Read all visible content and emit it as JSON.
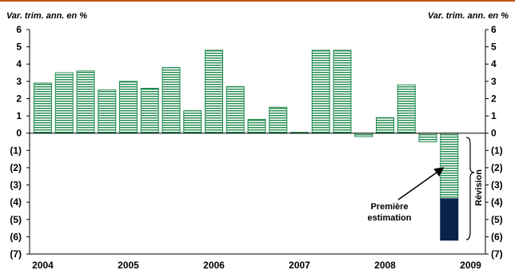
{
  "header_rule_color": "#c0561a",
  "chart_data": {
    "type": "bar",
    "y_axis_label_left": "Var. trim. ann. en %",
    "y_axis_label_right": "Var. trim. ann. en %",
    "ylim": [
      -7,
      6
    ],
    "y_ticks": [
      {
        "value": 6,
        "label": "6"
      },
      {
        "value": 5,
        "label": "5"
      },
      {
        "value": 4,
        "label": "4"
      },
      {
        "value": 3,
        "label": "3"
      },
      {
        "value": 2,
        "label": "2"
      },
      {
        "value": 1,
        "label": "1"
      },
      {
        "value": 0,
        "label": "0"
      },
      {
        "value": -1,
        "label": "(1)"
      },
      {
        "value": -2,
        "label": "(2)"
      },
      {
        "value": -3,
        "label": "(3)"
      },
      {
        "value": -4,
        "label": "(4)"
      },
      {
        "value": -5,
        "label": "(5)"
      },
      {
        "value": -6,
        "label": "(6)"
      },
      {
        "value": -7,
        "label": "(7)"
      }
    ],
    "x_labels": [
      "2004",
      "2005",
      "2006",
      "2007",
      "2008",
      "2009"
    ],
    "categories": [
      "2004Q1",
      "2004Q2",
      "2004Q3",
      "2004Q4",
      "2005Q1",
      "2005Q2",
      "2005Q3",
      "2005Q4",
      "2006Q1",
      "2006Q2",
      "2006Q3",
      "2006Q4",
      "2007Q1",
      "2007Q2",
      "2007Q3",
      "2007Q4",
      "2008Q1",
      "2008Q2",
      "2008Q3",
      "2008Q4"
    ],
    "series": [
      {
        "values": [
          2.9,
          3.5,
          3.6,
          2.5,
          3.0,
          2.6,
          3.8,
          1.3,
          4.8,
          2.7,
          0.8,
          1.5,
          0.05,
          4.8,
          4.8,
          -0.2,
          0.9,
          2.8,
          -0.5,
          -3.8
        ]
      },
      {
        "values": [
          0,
          0,
          0,
          0,
          0,
          0,
          0,
          0,
          0,
          0,
          0,
          0,
          0,
          0,
          0,
          0,
          0,
          0,
          0,
          -2.4
        ]
      }
    ],
    "colors": {
      "bar_stripe": "#1f8a4c",
      "bar_fill": "#ffffff",
      "revision": "#0b2248",
      "axis": "#000000"
    },
    "annotations": {
      "first_estimate": [
        "Première",
        "estimation"
      ],
      "revision": "Révision"
    }
  }
}
